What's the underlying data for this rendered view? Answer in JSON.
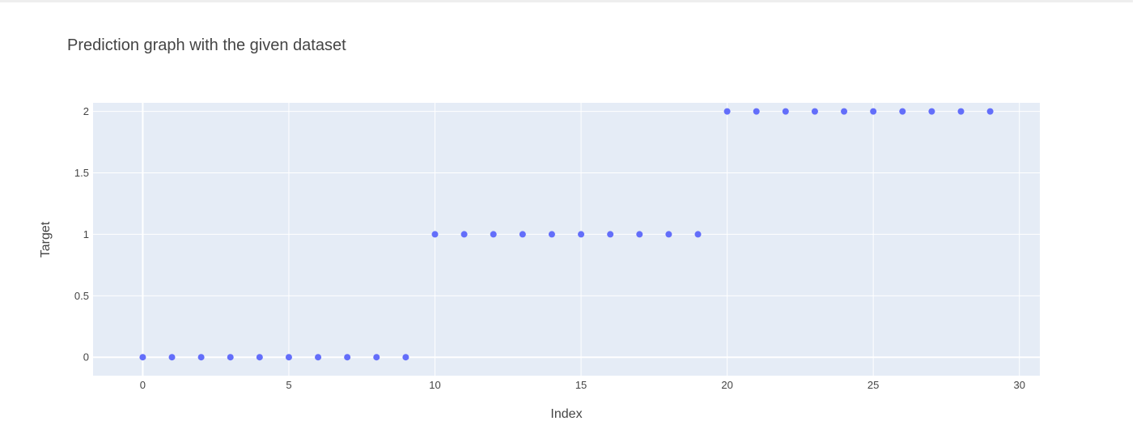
{
  "chart_data": {
    "type": "scatter",
    "title": "Prediction graph with the given dataset",
    "xlabel": "Index",
    "ylabel": "Target",
    "xlim": [
      -1.7,
      30.7
    ],
    "ylim": [
      -0.15,
      2.07
    ],
    "xticks": [
      0,
      5,
      10,
      15,
      20,
      25,
      30
    ],
    "xtick_labels": [
      "0",
      "5",
      "10",
      "15",
      "20",
      "25",
      "30"
    ],
    "yticks": [
      0,
      0.5,
      1,
      1.5,
      2
    ],
    "ytick_labels": [
      "0",
      "0.5",
      "1",
      "1.5",
      "2"
    ],
    "grid": true,
    "marker_color": "#636efa",
    "plot_bgcolor": "#e5ecf6",
    "x": [
      0,
      1,
      2,
      3,
      4,
      5,
      6,
      7,
      8,
      9,
      10,
      11,
      12,
      13,
      14,
      15,
      16,
      17,
      18,
      19,
      20,
      21,
      22,
      23,
      24,
      25,
      26,
      27,
      28,
      29
    ],
    "y": [
      0,
      0,
      0,
      0,
      0,
      0,
      0,
      0,
      0,
      0,
      1,
      1,
      1,
      1,
      1,
      1,
      1,
      1,
      1,
      1,
      2,
      2,
      2,
      2,
      2,
      2,
      2,
      2,
      2,
      2
    ]
  }
}
